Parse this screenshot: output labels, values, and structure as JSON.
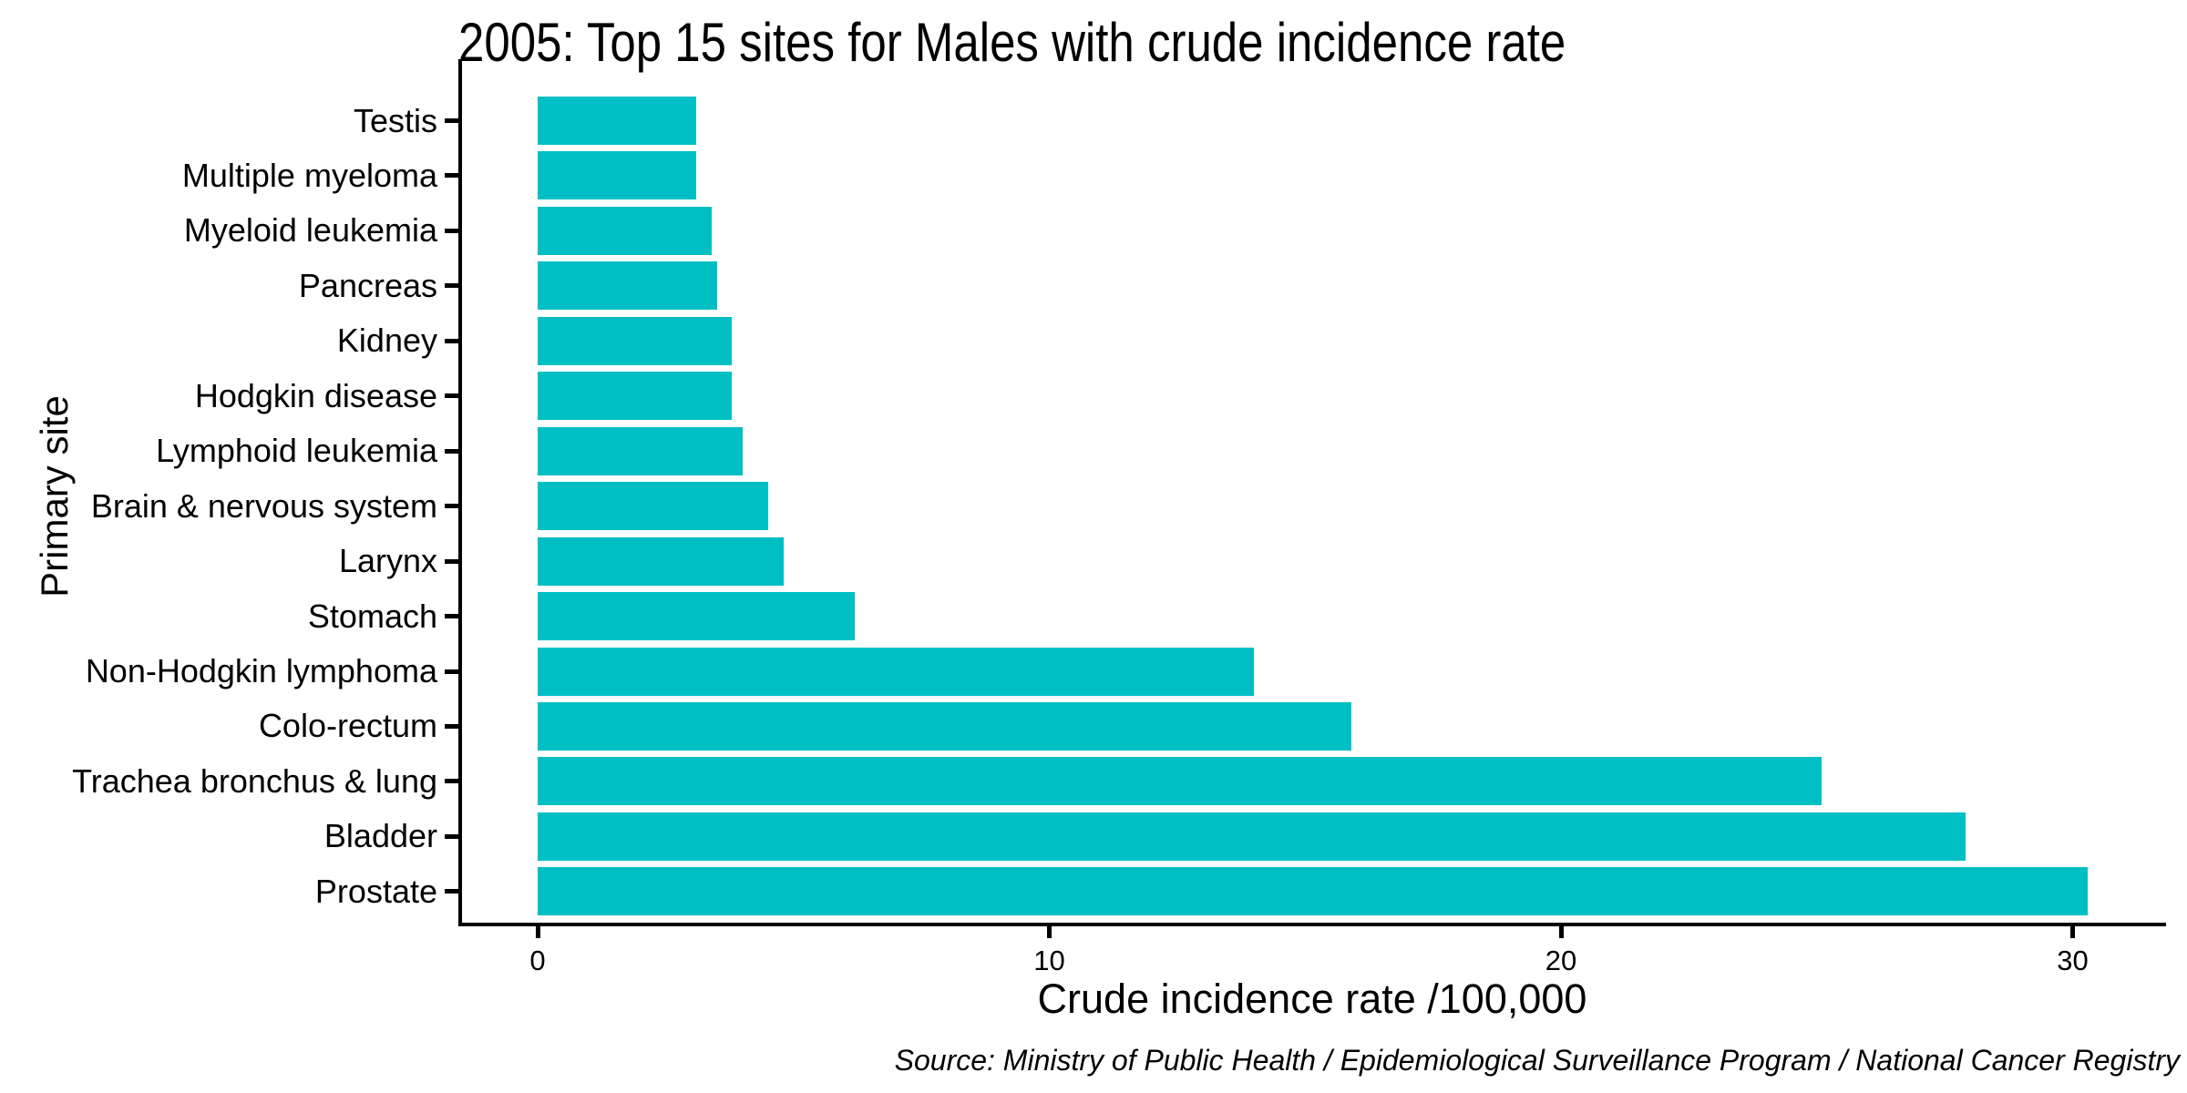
{
  "chart_data": {
    "type": "bar",
    "orientation": "horizontal",
    "title": "2005: Top 15 sites for Males with crude incidence rate",
    "xlabel": "Crude incidence rate /100,000",
    "ylabel": "Primary site",
    "caption": "Source: Ministry of Public Health / Epidemiological Surveillance Program / National Cancer Registry",
    "categories": [
      "Testis",
      "Multiple myeloma",
      "Myeloid leukemia",
      "Pancreas",
      "Kidney",
      "Hodgkin disease",
      "Lymphoid leukemia",
      "Brain & nervous system",
      "Larynx",
      "Stomach",
      "Non-Hodgkin lymphoma",
      "Colo-rectum",
      "Trachea bronchus & lung",
      "Bladder",
      "Prostate"
    ],
    "values": [
      3.1,
      3.1,
      3.4,
      3.5,
      3.8,
      3.8,
      4.0,
      4.5,
      4.8,
      6.2,
      14.0,
      15.9,
      25.1,
      27.9,
      30.3
    ],
    "x_ticks": [
      "0",
      "10",
      "20",
      "30"
    ],
    "x_tick_values": [
      0,
      10,
      20,
      30
    ],
    "xlim": [
      0,
      31.7
    ],
    "bar_color": "#00BFC4",
    "axis_color": "#000000",
    "text_color": "#000000",
    "grid": false,
    "legend": "none"
  }
}
